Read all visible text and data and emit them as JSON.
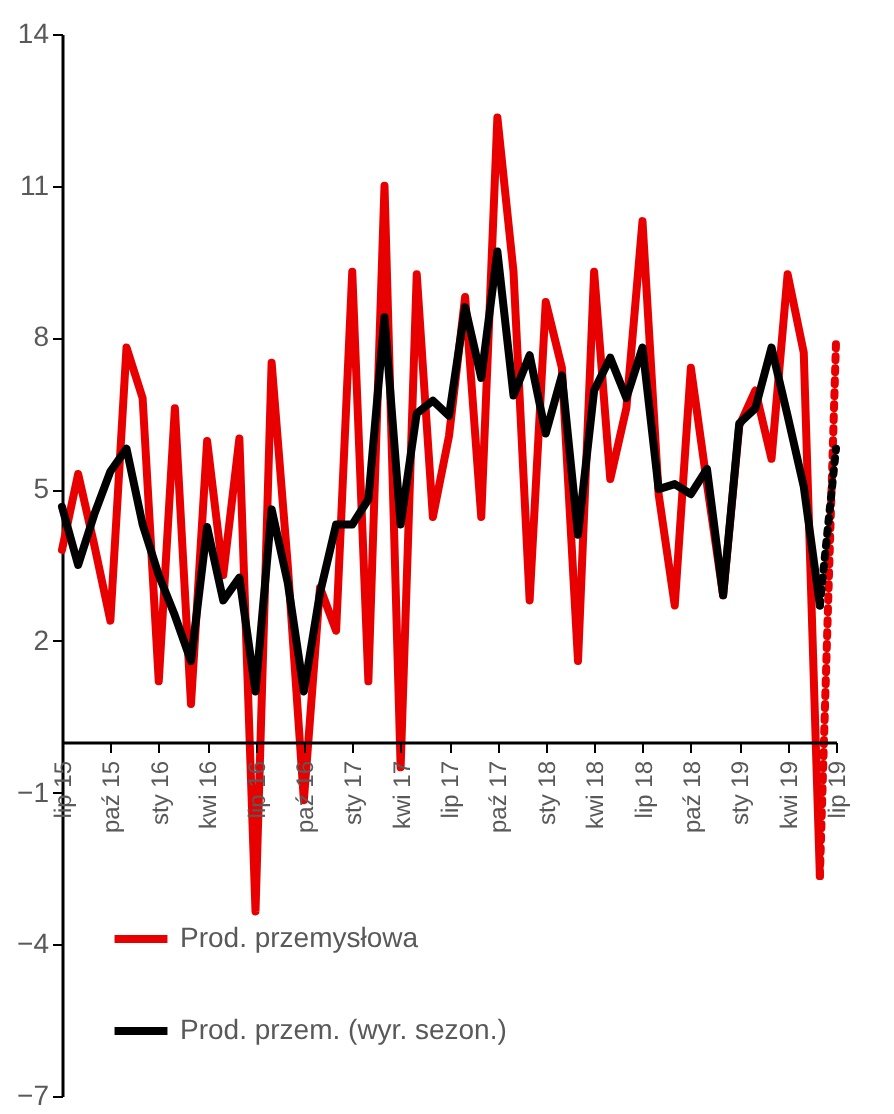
{
  "chart_data": {
    "type": "line",
    "categories": [
      "lip 15",
      null,
      null,
      "paź 15",
      null,
      null,
      "sty 16",
      null,
      null,
      "kwi 16",
      null,
      null,
      "lip 16",
      null,
      null,
      "paź 16",
      null,
      null,
      "sty 17",
      null,
      null,
      "kwi 17",
      null,
      null,
      "lip 17",
      null,
      null,
      "paź 17",
      null,
      null,
      "sty 18",
      null,
      null,
      "kwi 18",
      null,
      null,
      "lip 18",
      null,
      null,
      "paź 18",
      null,
      null,
      "sty 19",
      null,
      null,
      "kwi 19",
      null,
      null,
      "lip 19"
    ],
    "series": [
      {
        "name": "Prod. przemysłowa",
        "color": "#e80000",
        "line_style": "solid",
        "values": [
          3.8,
          5.3,
          3.9,
          2.4,
          7.8,
          6.8,
          1.2,
          6.6,
          0.75,
          5.95,
          3.3,
          6.0,
          -3.35,
          7.5,
          3.5,
          -1.15,
          3.05,
          2.2,
          9.3,
          1.2,
          11.0,
          -0.5,
          9.25,
          4.45,
          6.05,
          8.8,
          4.45,
          12.35,
          9.3,
          2.8,
          8.7,
          7.4,
          1.6,
          9.3,
          5.2,
          6.6,
          10.3,
          4.9,
          2.7,
          7.4,
          5.1,
          2.9,
          6.25,
          6.95,
          5.6,
          9.25,
          7.7,
          -2.65,
          null
        ]
      },
      {
        "name": "Prod. przem. (wyr. sezon.)",
        "color": "#000000",
        "line_style": "solid",
        "values": [
          4.65,
          3.5,
          4.5,
          5.35,
          5.8,
          4.3,
          3.3,
          2.5,
          1.6,
          4.25,
          2.8,
          3.25,
          1.0,
          4.6,
          3.15,
          1.0,
          2.95,
          4.3,
          4.3,
          4.8,
          8.4,
          4.3,
          6.5,
          6.75,
          6.45,
          8.6,
          7.2,
          9.7,
          6.85,
          7.65,
          6.1,
          7.25,
          4.1,
          6.95,
          7.6,
          6.8,
          7.8,
          5.0,
          5.1,
          4.9,
          5.4,
          2.9,
          6.3,
          6.6,
          7.8,
          6.45,
          5.05,
          2.7,
          null
        ]
      },
      {
        "color": "#e80000",
        "line_style": "dotted",
        "values": [
          null,
          null,
          null,
          null,
          null,
          null,
          null,
          null,
          null,
          null,
          null,
          null,
          null,
          null,
          null,
          null,
          null,
          null,
          null,
          null,
          null,
          null,
          null,
          null,
          null,
          null,
          null,
          null,
          null,
          null,
          null,
          null,
          null,
          null,
          null,
          null,
          null,
          null,
          null,
          null,
          null,
          null,
          null,
          null,
          null,
          null,
          null,
          -2.65,
          7.9
        ]
      },
      {
        "color": "#000000",
        "line_style": "dotted",
        "values": [
          null,
          null,
          null,
          null,
          null,
          null,
          null,
          null,
          null,
          null,
          null,
          null,
          null,
          null,
          null,
          null,
          null,
          null,
          null,
          null,
          null,
          null,
          null,
          null,
          null,
          null,
          null,
          null,
          null,
          null,
          null,
          null,
          null,
          null,
          null,
          null,
          null,
          null,
          null,
          null,
          null,
          null,
          null,
          null,
          null,
          null,
          null,
          2.7,
          5.8
        ]
      }
    ],
    "ylim": [
      -7,
      14
    ],
    "yticks": [
      -7,
      -4,
      -1,
      2,
      5,
      8,
      11,
      14
    ],
    "grid": false,
    "legend": "bottom left"
  }
}
